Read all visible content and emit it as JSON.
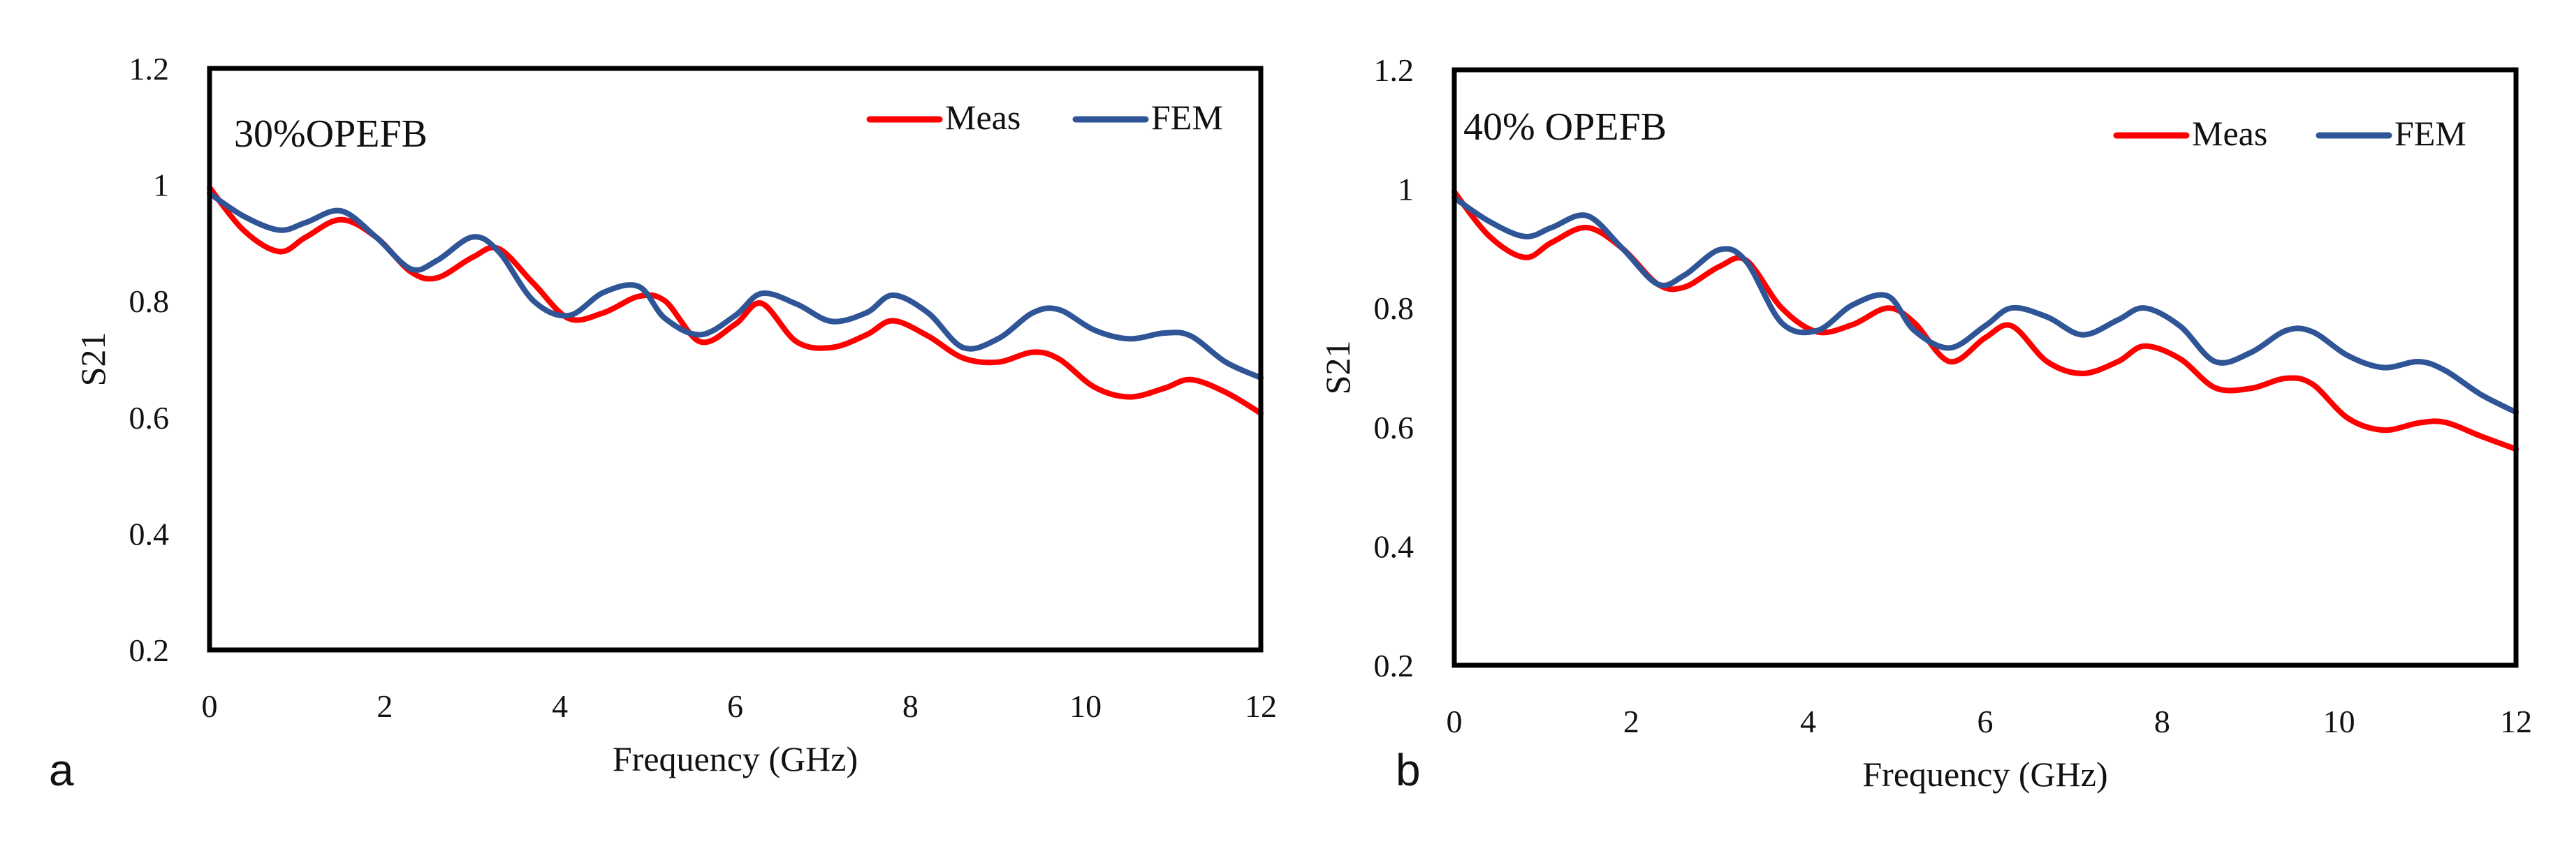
{
  "chart_data": [
    {
      "type": "line",
      "panel_label": "a",
      "annotation": "30%OPEFB",
      "xlabel": "Frequency (GHz)",
      "ylabel": "S21",
      "xlim": [
        0,
        12
      ],
      "ylim": [
        0.2,
        1.2
      ],
      "x_ticks": [
        "0",
        "2",
        "4",
        "6",
        "8",
        "10",
        "12"
      ],
      "y_ticks": [
        "0.2",
        "0.4",
        "0.6",
        "0.8",
        "1",
        "1.2"
      ],
      "grid": false,
      "legend_position": "top-right",
      "series": [
        {
          "name": "Meas",
          "color": "#ff0000",
          "x": [
            0,
            0.4,
            0.8,
            1.1,
            1.5,
            1.9,
            2.3,
            2.6,
            3.0,
            3.3,
            3.7,
            4.1,
            4.5,
            4.9,
            5.2,
            5.6,
            6.0,
            6.3,
            6.7,
            7.1,
            7.5,
            7.8,
            8.2,
            8.6,
            9.0,
            9.4,
            9.7,
            10.1,
            10.5,
            10.9,
            11.2,
            11.6,
            12.0
          ],
          "y": [
            0.995,
            0.92,
            0.885,
            0.91,
            0.94,
            0.91,
            0.85,
            0.84,
            0.875,
            0.89,
            0.83,
            0.77,
            0.78,
            0.808,
            0.8,
            0.73,
            0.76,
            0.796,
            0.73,
            0.72,
            0.742,
            0.766,
            0.74,
            0.702,
            0.695,
            0.712,
            0.7,
            0.652,
            0.635,
            0.65,
            0.665,
            0.643,
            0.607
          ]
        },
        {
          "name": "FEM",
          "color": "#2f5597",
          "x": [
            0,
            0.4,
            0.8,
            1.1,
            1.5,
            1.9,
            2.3,
            2.6,
            3.0,
            3.3,
            3.7,
            4.1,
            4.5,
            4.9,
            5.2,
            5.6,
            6.0,
            6.3,
            6.7,
            7.1,
            7.5,
            7.8,
            8.2,
            8.6,
            9.0,
            9.4,
            9.7,
            10.1,
            10.5,
            10.9,
            11.2,
            11.6,
            12.0
          ],
          "y": [
            0.985,
            0.945,
            0.922,
            0.935,
            0.955,
            0.91,
            0.855,
            0.87,
            0.91,
            0.885,
            0.8,
            0.775,
            0.815,
            0.825,
            0.77,
            0.742,
            0.775,
            0.813,
            0.795,
            0.765,
            0.78,
            0.81,
            0.78,
            0.72,
            0.735,
            0.78,
            0.785,
            0.75,
            0.735,
            0.745,
            0.74,
            0.695,
            0.668
          ]
        }
      ]
    },
    {
      "type": "line",
      "panel_label": "b",
      "annotation": "40% OPEFB",
      "xlabel": "Frequency (GHz)",
      "ylabel": "S21",
      "xlim": [
        0,
        12
      ],
      "ylim": [
        0.2,
        1.2
      ],
      "x_ticks": [
        "0",
        "2",
        "4",
        "6",
        "8",
        "10",
        "12"
      ],
      "y_ticks": [
        "0.2",
        "0.4",
        "0.6",
        "0.8",
        "1",
        "1.2"
      ],
      "grid": false,
      "legend_position": "top-right",
      "series": [
        {
          "name": "Meas",
          "color": "#ff0000",
          "x": [
            0,
            0.4,
            0.8,
            1.1,
            1.5,
            1.9,
            2.3,
            2.6,
            3.0,
            3.3,
            3.7,
            4.1,
            4.5,
            4.9,
            5.2,
            5.6,
            6.0,
            6.3,
            6.7,
            7.1,
            7.5,
            7.8,
            8.2,
            8.6,
            9.0,
            9.4,
            9.7,
            10.1,
            10.5,
            10.9,
            11.2,
            11.6,
            12.0
          ],
          "y": [
            0.995,
            0.92,
            0.885,
            0.91,
            0.935,
            0.9,
            0.84,
            0.835,
            0.87,
            0.88,
            0.8,
            0.76,
            0.772,
            0.8,
            0.775,
            0.71,
            0.75,
            0.77,
            0.71,
            0.69,
            0.71,
            0.736,
            0.715,
            0.666,
            0.665,
            0.682,
            0.672,
            0.615,
            0.595,
            0.607,
            0.608,
            0.585,
            0.563
          ]
        },
        {
          "name": "FEM",
          "color": "#2f5597",
          "x": [
            0,
            0.4,
            0.8,
            1.1,
            1.5,
            1.9,
            2.3,
            2.6,
            3.0,
            3.3,
            3.7,
            4.1,
            4.5,
            4.9,
            5.2,
            5.6,
            6.0,
            6.3,
            6.7,
            7.1,
            7.5,
            7.8,
            8.2,
            8.6,
            9.0,
            9.4,
            9.7,
            10.1,
            10.5,
            10.9,
            11.2,
            11.6,
            12.0
          ],
          "y": [
            0.985,
            0.945,
            0.92,
            0.935,
            0.955,
            0.9,
            0.84,
            0.855,
            0.898,
            0.878,
            0.775,
            0.762,
            0.805,
            0.82,
            0.762,
            0.733,
            0.77,
            0.8,
            0.785,
            0.755,
            0.78,
            0.8,
            0.77,
            0.71,
            0.725,
            0.762,
            0.76,
            0.72,
            0.7,
            0.71,
            0.695,
            0.655,
            0.625
          ]
        }
      ]
    }
  ]
}
